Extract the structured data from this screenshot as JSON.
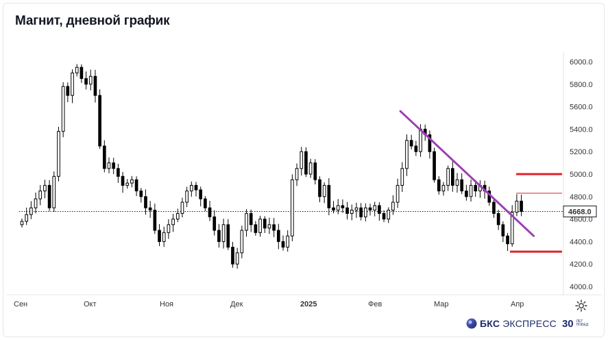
{
  "title": "Магнит, дневной график",
  "chart_data": {
    "type": "candlestick",
    "title": "Магнит, дневной график",
    "y_ticks": [
      "6000.0",
      "5800.0",
      "5600.0",
      "5400.0",
      "5200.0",
      "5000.0",
      "4800.0",
      "4600.0",
      "4400.0",
      "4200.0",
      "4000.0"
    ],
    "x_ticks": [
      {
        "label": "Сен",
        "bold": false
      },
      {
        "label": "Окт",
        "bold": false
      },
      {
        "label": "Ноя",
        "bold": false
      },
      {
        "label": "Дек",
        "bold": false
      },
      {
        "label": "2025",
        "bold": true
      },
      {
        "label": "Фев",
        "bold": false
      },
      {
        "label": "Мар",
        "bold": false
      },
      {
        "label": "Апр",
        "bold": false
      }
    ],
    "ylim": [
      3980,
      6030
    ],
    "last_price": "4668.0",
    "closes": [
      4580,
      4640,
      4700,
      4780,
      4850,
      4900,
      4700,
      4980,
      5380,
      5780,
      5700,
      5900,
      5950,
      5850,
      5800,
      5870,
      5700,
      5250,
      5050,
      5100,
      5050,
      4980,
      4900,
      4920,
      4950,
      4850,
      4800,
      4700,
      4680,
      4500,
      4400,
      4480,
      4550,
      4600,
      4650,
      4750,
      4850,
      4900,
      4860,
      4780,
      4700,
      4620,
      4500,
      4400,
      4550,
      4350,
      4200,
      4300,
      4500,
      4650,
      4550,
      4480,
      4600,
      4520,
      4550,
      4500,
      4400,
      4350,
      4450,
      4950,
      5050,
      5200,
      5000,
      5100,
      4950,
      4800,
      4900,
      4700,
      4680,
      4720,
      4700,
      4650,
      4680,
      4700,
      4620,
      4700,
      4680,
      4720,
      4650,
      4600,
      4680,
      4750,
      4900,
      5050,
      5300,
      5250,
      5200,
      5400,
      5350,
      5200,
      4950,
      4850,
      4900,
      5050,
      4900,
      4950,
      4850,
      4800,
      4900,
      4850,
      4900,
      4850,
      4750,
      4650,
      4550,
      4450,
      4380,
      4660,
      4760,
      4668
    ],
    "support_levels": [
      5000,
      4310
    ],
    "resistance_level": 4830,
    "trendline": {
      "from": {
        "index": 82,
        "price": 5560
      },
      "to": {
        "index": 109,
        "price": 4450
      }
    },
    "grid": false
  },
  "icons": {
    "settings": "gear-icon",
    "brand": "bks-logo-icon"
  },
  "brand": {
    "name_bold": "БКС",
    "name_light": "ЭКСПРЕСС",
    "years": "30",
    "tagline_1": "ЛЕТ",
    "tagline_2": "ПОБЕД"
  },
  "colors": {
    "candle": "#000000",
    "trendline": "#9c3fb3",
    "support": "#e0202a",
    "price_line": "#131722"
  }
}
